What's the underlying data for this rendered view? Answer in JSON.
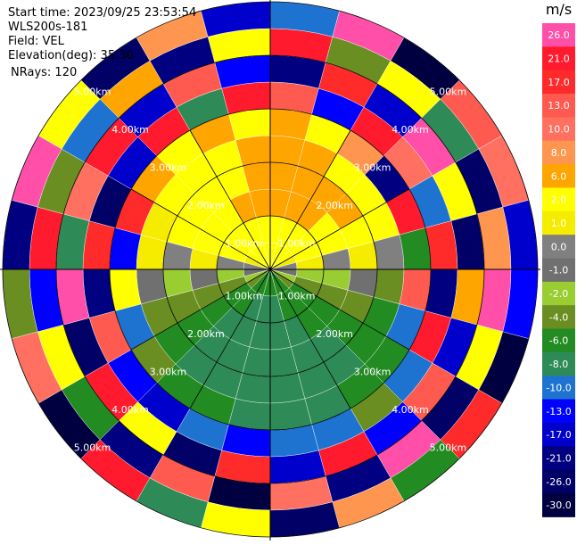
{
  "chart_data": {
    "type": "ppi",
    "header": [
      "Start time: 2023/09/25 23:53:54",
      "WLS200s-181",
      "Field: VEL",
      "Elevation(deg): 35.30",
      "NRays: 120"
    ],
    "rings": [
      {
        "value": 1,
        "label": "1.00km"
      },
      {
        "value": 2,
        "label": "2.00km"
      },
      {
        "value": 3,
        "label": "3.00km"
      },
      {
        "value": 4,
        "label": "4.00km"
      },
      {
        "value": 5,
        "label": "5.00km"
      }
    ],
    "colorbar_title": "m/s",
    "colorbar_ticks": [
      {
        "value": 26,
        "label": "26.0"
      },
      {
        "value": 21,
        "label": "21.0"
      },
      {
        "value": 17,
        "label": "17.0"
      },
      {
        "value": 13,
        "label": "13.0"
      },
      {
        "value": 10,
        "label": "10.0"
      },
      {
        "value": 8,
        "label": "8.0"
      },
      {
        "value": 6,
        "label": "6.0"
      },
      {
        "value": 2,
        "label": "2.0"
      },
      {
        "value": 1,
        "label": "1.0"
      },
      {
        "value": 0,
        "label": "0.0"
      },
      {
        "value": -1,
        "label": "-1.0"
      },
      {
        "value": -2,
        "label": "-2.0"
      },
      {
        "value": -4,
        "label": "-4.0"
      },
      {
        "value": -6,
        "label": "-6.0"
      },
      {
        "value": -8,
        "label": "-8.0"
      },
      {
        "value": -10,
        "label": "-10.0"
      },
      {
        "value": -13,
        "label": "-13.0"
      },
      {
        "value": -17,
        "label": "-17.0"
      },
      {
        "value": -21,
        "label": "-21.0"
      },
      {
        "value": -26,
        "label": "-26.0"
      },
      {
        "value": -30,
        "label": "-30.0"
      }
    ],
    "colorbar_colors": [
      "#ff4fa8",
      "#ff1a2e",
      "#ff2a2a",
      "#ff5a50",
      "#ff7060",
      "#ff9650",
      "#ffa500",
      "#ffff00",
      "#f5ec00",
      "#808080",
      "#707070",
      "#9acd32",
      "#6b8e23",
      "#228b22",
      "#2e8b57",
      "#1e73d0",
      "#0000ff",
      "#0000cd",
      "#000080",
      "#000066",
      "#000040"
    ],
    "velocity": [
      [
        3,
        4,
        7,
        7,
        7,
        7,
        14,
        -20,
        25,
        -9
      ],
      [
        3,
        4,
        7,
        7,
        7,
        4,
        -12,
        19,
        -3,
        28
      ],
      [
        3,
        3,
        7,
        7,
        5,
        9,
        23,
        -14,
        5,
        -27
      ],
      [
        2,
        3,
        4,
        7,
        4,
        -18,
        12,
        27,
        -7,
        15
      ],
      [
        1.5,
        3,
        4,
        3,
        4,
        24,
        -10,
        3,
        -22,
        11
      ],
      [
        0.5,
        1.5,
        0.5,
        1.5,
        0.5,
        -5,
        18,
        -25,
        9,
        -14
      ],
      [
        -0.5,
        -1.5,
        -1.5,
        -0.5,
        -3,
        14,
        -20,
        7,
        26,
        -11
      ],
      [
        -1.5,
        -3,
        -3,
        -3,
        -5,
        -9,
        22,
        -16,
        4,
        -28
      ],
      [
        -3,
        -5,
        -5,
        -5,
        -5,
        -5,
        -9,
        15,
        -23,
        19
      ],
      [
        -5,
        -5,
        -5,
        -7,
        -7,
        -5,
        -3,
        -12,
        27,
        -6
      ],
      [
        -5,
        -5,
        -7,
        -7,
        -7,
        -7,
        -9,
        23,
        -18,
        8
      ],
      [
        -5,
        -7,
        -7,
        -7,
        -7,
        -7,
        -9,
        -15,
        11,
        -25
      ],
      [
        -5,
        -7,
        -7,
        -7,
        -7,
        -7,
        -12,
        19,
        -27,
        4
      ],
      [
        -5,
        -7,
        -7,
        -7,
        -7,
        -5,
        -9,
        -22,
        15,
        -8
      ],
      [
        -5,
        -5,
        -7,
        -7,
        -7,
        -5,
        -15,
        5,
        -19,
        24
      ],
      [
        -3,
        -5,
        -5,
        -5,
        -5,
        -3,
        -11,
        21,
        -6,
        -28
      ],
      [
        -1.5,
        -3,
        -3,
        -3,
        -3,
        -9,
        16,
        -24,
        3,
        12
      ],
      [
        -0.5,
        -1.5,
        -0.5,
        -1.5,
        -0.5,
        5,
        -18,
        27,
        -13,
        -4
      ],
      [
        0.5,
        0.5,
        1.5,
        0.5,
        1.5,
        -12,
        20,
        -7,
        24,
        -19
      ],
      [
        1.5,
        3,
        3,
        3,
        1.5,
        18,
        -22,
        11,
        -3,
        26
      ],
      [
        3,
        3,
        4,
        3,
        3,
        7,
        -14,
        25,
        -9,
        4
      ],
      [
        3,
        4,
        4,
        4,
        3,
        4,
        21,
        -16,
        7,
        -26
      ],
      [
        3,
        4,
        7,
        4,
        4,
        7,
        -8,
        13,
        -21,
        9
      ],
      [
        3,
        4,
        7,
        7,
        7,
        5,
        25,
        -11,
        3,
        -17
      ]
    ]
  }
}
